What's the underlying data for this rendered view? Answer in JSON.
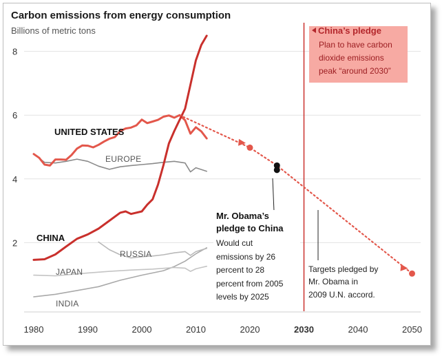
{
  "chart_data": {
    "type": "line",
    "title": "Carbon emissions from energy consumption",
    "subtitle": "Billions of metric tons",
    "xlim": [
      1978,
      2052
    ],
    "ylim": [
      0,
      9
    ],
    "x_ticks": [
      1980,
      1990,
      2000,
      2010,
      2020,
      2030,
      2040,
      2050
    ],
    "y_ticks": [
      2,
      4,
      6,
      8
    ],
    "highlight_year": 2030,
    "grid": true,
    "series": [
      {
        "name": "UNITED STATES",
        "color": "#e3574b",
        "x": [
          1980,
          1981,
          1982,
          1983,
          1984,
          1985,
          1986,
          1987,
          1988,
          1989,
          1990,
          1991,
          1992,
          1993,
          1994,
          1995,
          1996,
          1997,
          1998,
          1999,
          2000,
          2001,
          2002,
          2003,
          2004,
          2005,
          2006,
          2007,
          2008,
          2009,
          2010,
          2011,
          2012
        ],
        "values": [
          4.78,
          4.66,
          4.45,
          4.42,
          4.61,
          4.61,
          4.6,
          4.75,
          4.95,
          5.05,
          5.04,
          4.99,
          5.07,
          5.17,
          5.26,
          5.31,
          5.5,
          5.58,
          5.61,
          5.68,
          5.86,
          5.75,
          5.8,
          5.85,
          5.95,
          5.99,
          5.92,
          6.0,
          5.84,
          5.42,
          5.62,
          5.49,
          5.27
        ]
      },
      {
        "name": "EUROPE",
        "color": "#8a8a8a",
        "x": [
          1980,
          1982,
          1984,
          1986,
          1988,
          1990,
          1992,
          1994,
          1996,
          1998,
          2000,
          2002,
          2004,
          2006,
          2008,
          2009,
          2010,
          2012
        ],
        "values": [
          4.78,
          4.52,
          4.5,
          4.55,
          4.62,
          4.55,
          4.4,
          4.3,
          4.38,
          4.42,
          4.45,
          4.48,
          4.52,
          4.55,
          4.5,
          4.22,
          4.35,
          4.24
        ]
      },
      {
        "name": "CHINA",
        "color": "#c9302c",
        "x": [
          1980,
          1982,
          1984,
          1986,
          1988,
          1990,
          1992,
          1994,
          1996,
          1997,
          1998,
          2000,
          2001,
          2002,
          2003,
          2004,
          2005,
          2006,
          2007,
          2008,
          2009,
          2010,
          2011,
          2012
        ],
        "values": [
          1.46,
          1.48,
          1.63,
          1.88,
          2.12,
          2.26,
          2.44,
          2.69,
          2.94,
          2.98,
          2.9,
          2.98,
          3.19,
          3.36,
          3.82,
          4.43,
          5.11,
          5.5,
          5.85,
          6.2,
          6.95,
          7.72,
          8.2,
          8.49
        ]
      },
      {
        "name": "RUSSIA",
        "color": "#b8b8b8",
        "x": [
          1992,
          1994,
          1996,
          1998,
          2000,
          2002,
          2004,
          2006,
          2008,
          2009,
          2010,
          2012
        ],
        "values": [
          2.02,
          1.78,
          1.62,
          1.52,
          1.56,
          1.58,
          1.62,
          1.68,
          1.72,
          1.6,
          1.72,
          1.82
        ]
      },
      {
        "name": "JAPAN",
        "color": "#c4c4c4",
        "x": [
          1980,
          1984,
          1988,
          1990,
          1994,
          1998,
          2002,
          2006,
          2008,
          2009,
          2010,
          2011,
          2012
        ],
        "values": [
          0.98,
          0.96,
          1.02,
          1.05,
          1.1,
          1.14,
          1.17,
          1.22,
          1.2,
          1.1,
          1.18,
          1.22,
          1.26
        ]
      },
      {
        "name": "INDIA",
        "color": "#a9a9a9",
        "x": [
          1980,
          1984,
          1988,
          1992,
          1996,
          2000,
          2004,
          2006,
          2008,
          2010,
          2012
        ],
        "values": [
          0.3,
          0.38,
          0.5,
          0.62,
          0.82,
          0.98,
          1.12,
          1.25,
          1.42,
          1.65,
          1.84
        ]
      }
    ],
    "projection": {
      "x": [
        2007,
        2020,
        2025,
        2050
      ],
      "values": [
        6.0,
        4.98,
        4.42,
        1.03
      ],
      "markers": [
        {
          "x": 2020,
          "value": 4.98
        },
        {
          "x": 2050,
          "value": 1.03
        }
      ]
    },
    "obama_points": [
      {
        "x": 2025,
        "value": 4.42
      },
      {
        "x": 2025,
        "value": 4.28
      }
    ]
  },
  "annotations": {
    "us_label": "UNITED STATES",
    "europe_label": "EUROPE",
    "china_label": "CHINA",
    "russia_label": "RUSSIA",
    "japan_label": "JAPAN",
    "india_label": "INDIA",
    "china_pledge": {
      "title": "China’s pledge",
      "lines": [
        "Plan to have carbon",
        "dioxide emissions",
        "peak “around 2030”"
      ]
    },
    "obama_pledge": {
      "title_lines": [
        "Mr. Obama’s",
        "pledge to China"
      ],
      "lines": [
        "Would cut",
        "emissions by 26",
        "percent to 28",
        "percent from 2005",
        "levels by 2025"
      ]
    },
    "targets_note": {
      "lines": [
        "Targets pledged by",
        "Mr. Obama in",
        "2009 U.N. accord."
      ]
    }
  }
}
